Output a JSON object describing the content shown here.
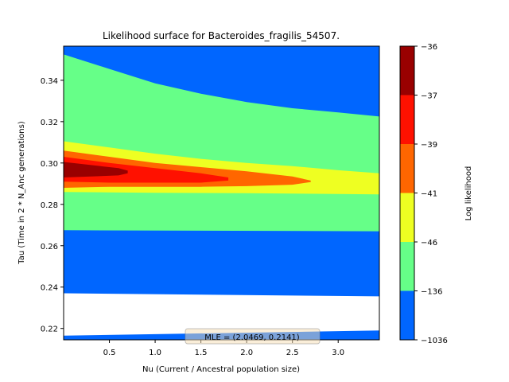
{
  "chart_data": {
    "type": "contour",
    "title": "Likelihood surface for Bacteroides_fragilis_54507.",
    "xlabel": "Nu (Current / Ancestral population size)",
    "ylabel": "Tau (Time in 2 * N_Anc generations)",
    "xlim": [
      0.0,
      3.45
    ],
    "ylim": [
      0.2145,
      0.3565
    ],
    "x_ticks": [
      "0.5",
      "1.0",
      "1.5",
      "2.0",
      "2.5",
      "3.0"
    ],
    "x_tick_values": [
      0.5,
      1.0,
      1.5,
      2.0,
      2.5,
      3.0
    ],
    "y_ticks": [
      "0.22",
      "0.24",
      "0.26",
      "0.28",
      "0.30",
      "0.32",
      "0.34"
    ],
    "y_tick_values": [
      0.22,
      0.24,
      0.26,
      0.28,
      0.3,
      0.32,
      0.34
    ],
    "colorbar": {
      "label": "Log likelihood",
      "levels": [
        "-36",
        "-37",
        "-39",
        "-41",
        "-46",
        "-136",
        "-1036"
      ],
      "colors": [
        "#990000",
        "#ff1100",
        "#ff6600",
        "#eeff22",
        "#66ff88",
        "#0066ff"
      ]
    },
    "mle_annotation": "MLE = (2.0469, 0.2141)",
    "mle_point": {
      "nu": 2.0469,
      "tau": 0.2141
    },
    "regions": [
      {
        "level": "-1036",
        "color": "#0066ff",
        "upper_nu": [
          0.0,
          0.5,
          1.0,
          1.5,
          2.0,
          2.5,
          3.0,
          3.45
        ],
        "upper_tau": [
          0.3565,
          0.3565,
          0.3565,
          0.3565,
          0.3565,
          0.3565,
          0.3565,
          0.3565
        ],
        "lower_nu": [
          0.0,
          3.45
        ],
        "lower_tau": [
          0.2145,
          0.2145
        ]
      },
      {
        "level": "-136",
        "color": "#66ff88",
        "upper_nu": [
          0.0,
          0.5,
          1.0,
          1.5,
          2.0,
          2.5,
          3.0,
          3.45
        ],
        "upper_tau": [
          0.3525,
          0.3455,
          0.3385,
          0.3335,
          0.3295,
          0.3265,
          0.3245,
          0.3225
        ],
        "lower_nu": [
          0.0,
          3.45
        ],
        "lower_tau": [
          0.2675,
          0.267
        ]
      },
      {
        "level": "-46",
        "color": "#eeff22",
        "upper_nu": [
          0.0,
          0.5,
          1.0,
          1.5,
          2.0,
          2.5,
          3.0,
          3.45
        ],
        "upper_tau": [
          0.3105,
          0.3075,
          0.3045,
          0.302,
          0.3,
          0.2985,
          0.2965,
          0.295
        ],
        "lower_nu": [
          0.0,
          0.5,
          1.0,
          1.5,
          2.0,
          2.5,
          3.0,
          3.45
        ],
        "lower_tau": [
          0.286,
          0.2858,
          0.2856,
          0.2855,
          0.2854,
          0.2852,
          0.285,
          0.2848
        ]
      },
      {
        "level": "-41",
        "color": "#ff6600",
        "upper_nu": [
          0.0,
          0.5,
          1.0,
          1.5,
          2.0,
          2.5,
          2.7
        ],
        "upper_tau": [
          0.306,
          0.303,
          0.3,
          0.298,
          0.296,
          0.2935,
          0.2915
        ],
        "lower_nu": [
          0.0,
          0.5,
          1.0,
          1.5,
          2.0,
          2.5,
          2.7
        ],
        "lower_tau": [
          0.288,
          0.2885,
          0.2885,
          0.2885,
          0.2888,
          0.2895,
          0.2908
        ]
      },
      {
        "level": "-39",
        "color": "#ff1100",
        "upper_nu": [
          0.0,
          0.5,
          1.0,
          1.5,
          1.8
        ],
        "upper_tau": [
          0.303,
          0.3,
          0.2975,
          0.295,
          0.293
        ],
        "lower_nu": [
          0.0,
          0.5,
          1.0,
          1.5,
          1.8
        ],
        "lower_tau": [
          0.291,
          0.2905,
          0.2905,
          0.2905,
          0.2915
        ]
      },
      {
        "level": "-37",
        "color": "#990000",
        "upper_nu": [
          0.0,
          0.3,
          0.6,
          0.7
        ],
        "upper_tau": [
          0.3005,
          0.299,
          0.2975,
          0.2963
        ],
        "lower_nu": [
          0.0,
          0.3,
          0.6,
          0.7
        ],
        "lower_tau": [
          0.293,
          0.2935,
          0.294,
          0.295
        ]
      },
      {
        "level": "white",
        "color": "#ffffff",
        "upper_nu": [
          0.0,
          3.45
        ],
        "upper_tau": [
          0.237,
          0.2355
        ],
        "lower_nu": [
          0.0,
          3.45
        ],
        "lower_tau": [
          0.2165,
          0.219
        ]
      }
    ]
  }
}
